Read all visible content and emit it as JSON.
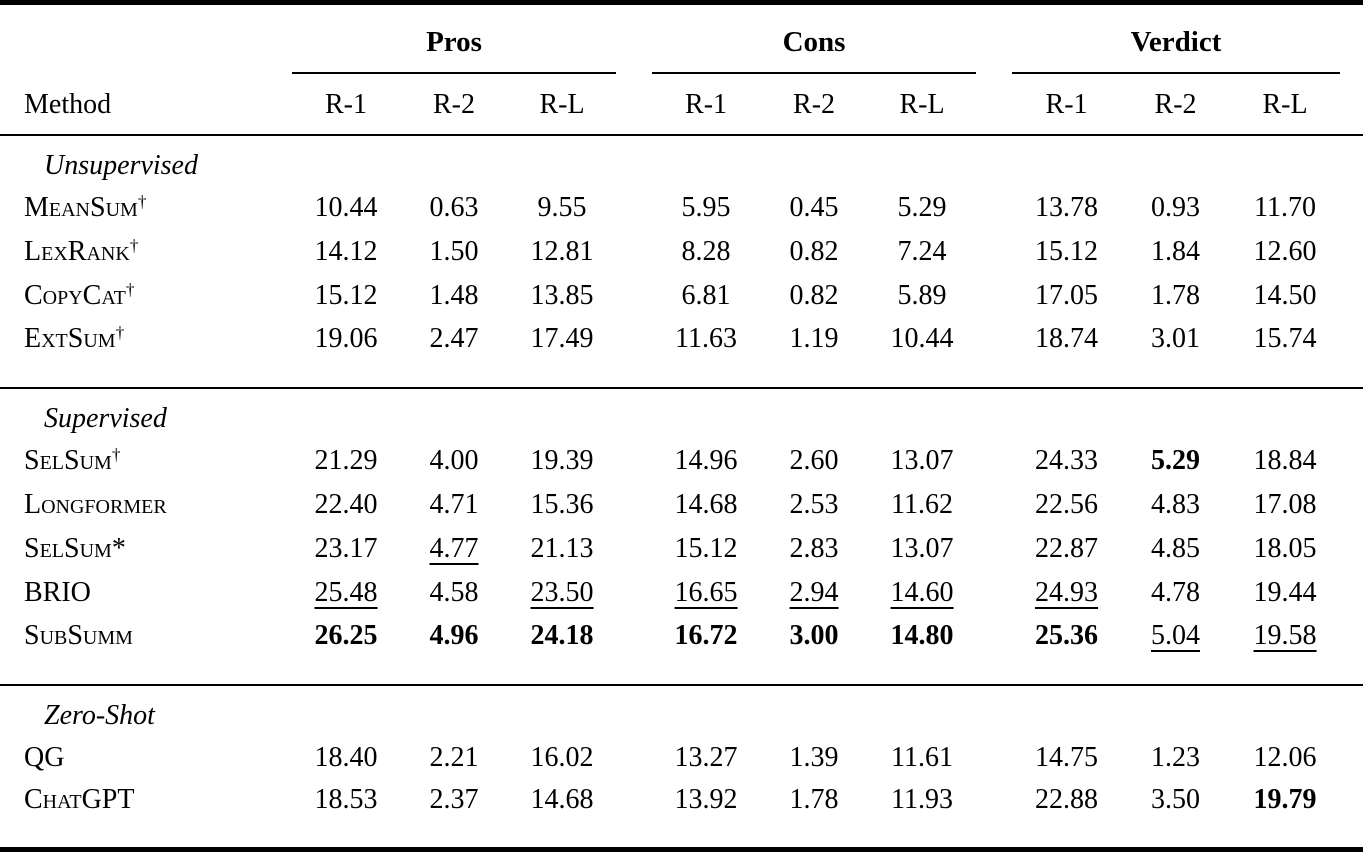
{
  "page": {
    "background_color": "#ffffff",
    "text_color": "#000000",
    "rule_color": "#000000"
  },
  "table": {
    "columns": {
      "method": "Method",
      "groups": [
        "Pros",
        "Cons",
        "Verdict"
      ],
      "metrics": [
        "R-1",
        "R-2",
        "R-L"
      ]
    },
    "sections": [
      {
        "label": "Unsupervised",
        "rows": [
          {
            "method": "MeanSum",
            "marker": "†",
            "cells": [
              {
                "v": "10.44"
              },
              {
                "v": "0.63"
              },
              {
                "v": "9.55"
              },
              {
                "v": "5.95"
              },
              {
                "v": "0.45"
              },
              {
                "v": "5.29"
              },
              {
                "v": "13.78"
              },
              {
                "v": "0.93"
              },
              {
                "v": "11.70"
              }
            ]
          },
          {
            "method": "LexRank",
            "marker": "†",
            "cells": [
              {
                "v": "14.12"
              },
              {
                "v": "1.50"
              },
              {
                "v": "12.81"
              },
              {
                "v": "8.28"
              },
              {
                "v": "0.82"
              },
              {
                "v": "7.24"
              },
              {
                "v": "15.12"
              },
              {
                "v": "1.84"
              },
              {
                "v": "12.60"
              }
            ]
          },
          {
            "method": "CopyCat",
            "marker": "†",
            "cells": [
              {
                "v": "15.12"
              },
              {
                "v": "1.48"
              },
              {
                "v": "13.85"
              },
              {
                "v": "6.81"
              },
              {
                "v": "0.82"
              },
              {
                "v": "5.89"
              },
              {
                "v": "17.05"
              },
              {
                "v": "1.78"
              },
              {
                "v": "14.50"
              }
            ]
          },
          {
            "method": "ExtSum",
            "marker": "†",
            "cells": [
              {
                "v": "19.06"
              },
              {
                "v": "2.47"
              },
              {
                "v": "17.49"
              },
              {
                "v": "11.63"
              },
              {
                "v": "1.19"
              },
              {
                "v": "10.44"
              },
              {
                "v": "18.74"
              },
              {
                "v": "3.01"
              },
              {
                "v": "15.74"
              }
            ]
          }
        ]
      },
      {
        "label": "Supervised",
        "rows": [
          {
            "method": "SelSum",
            "marker": "†",
            "cells": [
              {
                "v": "21.29"
              },
              {
                "v": "4.00"
              },
              {
                "v": "19.39"
              },
              {
                "v": "14.96"
              },
              {
                "v": "2.60"
              },
              {
                "v": "13.07"
              },
              {
                "v": "24.33"
              },
              {
                "v": "5.29",
                "s": "b"
              },
              {
                "v": "18.84"
              }
            ]
          },
          {
            "method": "Longformer",
            "cells": [
              {
                "v": "22.40"
              },
              {
                "v": "4.71"
              },
              {
                "v": "15.36"
              },
              {
                "v": "14.68"
              },
              {
                "v": "2.53"
              },
              {
                "v": "11.62"
              },
              {
                "v": "22.56"
              },
              {
                "v": "4.83"
              },
              {
                "v": "17.08"
              }
            ]
          },
          {
            "method": "SelSum",
            "marker": "*",
            "cells": [
              {
                "v": "23.17"
              },
              {
                "v": "4.77",
                "s": "u"
              },
              {
                "v": "21.13"
              },
              {
                "v": "15.12"
              },
              {
                "v": "2.83"
              },
              {
                "v": "13.07"
              },
              {
                "v": "22.87"
              },
              {
                "v": "4.85"
              },
              {
                "v": "18.05"
              }
            ]
          },
          {
            "method": "BRIO",
            "cells": [
              {
                "v": "25.48",
                "s": "u"
              },
              {
                "v": "4.58"
              },
              {
                "v": "23.50",
                "s": "u"
              },
              {
                "v": "16.65",
                "s": "u"
              },
              {
                "v": "2.94",
                "s": "u"
              },
              {
                "v": "14.60",
                "s": "u"
              },
              {
                "v": "24.93",
                "s": "u"
              },
              {
                "v": "4.78"
              },
              {
                "v": "19.44"
              }
            ]
          },
          {
            "method": "SubSumm",
            "cells": [
              {
                "v": "26.25",
                "s": "b"
              },
              {
                "v": "4.96",
                "s": "b"
              },
              {
                "v": "24.18",
                "s": "b"
              },
              {
                "v": "16.72",
                "s": "b"
              },
              {
                "v": "3.00",
                "s": "b"
              },
              {
                "v": "14.80",
                "s": "b"
              },
              {
                "v": "25.36",
                "s": "b"
              },
              {
                "v": "5.04",
                "s": "u"
              },
              {
                "v": "19.58",
                "s": "u"
              }
            ]
          }
        ]
      },
      {
        "label": "Zero-Shot",
        "rows": [
          {
            "method": "QG",
            "cells": [
              {
                "v": "18.40"
              },
              {
                "v": "2.21"
              },
              {
                "v": "16.02"
              },
              {
                "v": "13.27"
              },
              {
                "v": "1.39"
              },
              {
                "v": "11.61"
              },
              {
                "v": "14.75"
              },
              {
                "v": "1.23"
              },
              {
                "v": "12.06"
              }
            ]
          },
          {
            "method": "ChatGPT",
            "cells": [
              {
                "v": "18.53"
              },
              {
                "v": "2.37"
              },
              {
                "v": "14.68"
              },
              {
                "v": "13.92"
              },
              {
                "v": "1.78"
              },
              {
                "v": "11.93"
              },
              {
                "v": "22.88"
              },
              {
                "v": "3.50"
              },
              {
                "v": "19.79",
                "s": "b"
              }
            ]
          }
        ]
      }
    ]
  }
}
